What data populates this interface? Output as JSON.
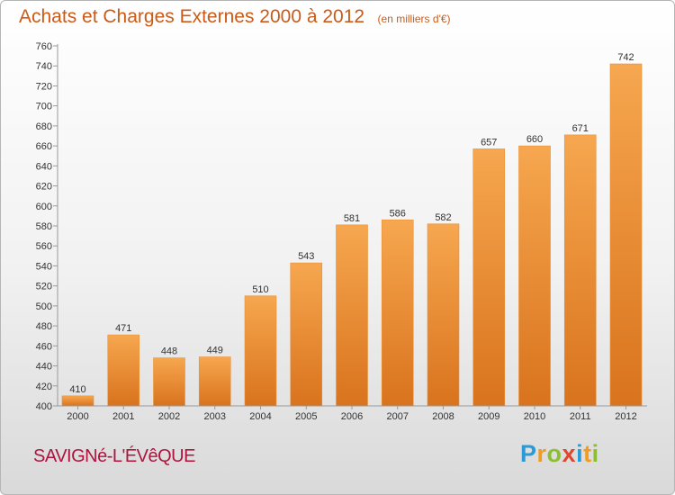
{
  "header": {
    "title": "Achats et Charges Externes 2000 à 2012",
    "unit": "(en milliers d'€)"
  },
  "footer": {
    "town": "SAVIGNé-L'ÉVêQUE",
    "brand_letters": [
      "P",
      "r",
      "o",
      "x",
      "i",
      "t",
      "i"
    ]
  },
  "colors": {
    "bar_top": "#f6a74f",
    "bar_bottom": "#d9731d",
    "title": "#cc5a16",
    "town": "#b0143e"
  },
  "chart_data": {
    "type": "bar",
    "title": "Achats et Charges Externes 2000 à 2012",
    "subtitle": "(en milliers d'€)",
    "xlabel": "",
    "ylabel": "",
    "categories": [
      "2000",
      "2001",
      "2002",
      "2003",
      "2004",
      "2005",
      "2006",
      "2007",
      "2008",
      "2009",
      "2010",
      "2011",
      "2012"
    ],
    "values": [
      410,
      471,
      448,
      449,
      510,
      543,
      581,
      586,
      582,
      657,
      660,
      671,
      742
    ],
    "ylim": [
      400,
      760
    ],
    "ytick_step": 20,
    "grid": false,
    "data_labels": true
  }
}
